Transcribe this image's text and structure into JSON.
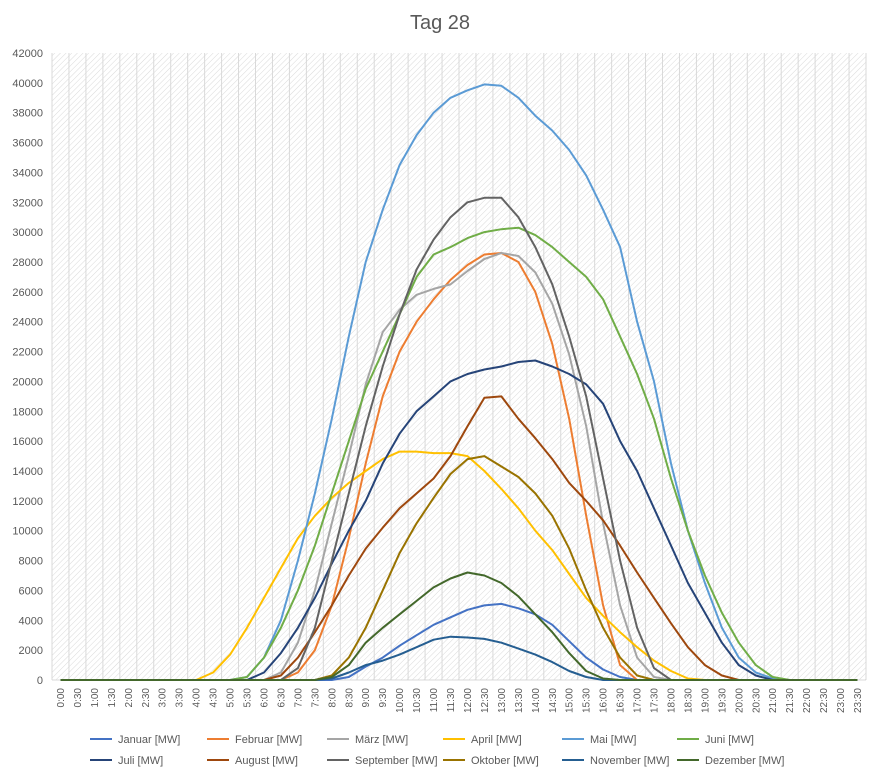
{
  "chart_data": {
    "type": "line",
    "title": "Tag 28",
    "ylim": [
      0,
      42000
    ],
    "y_ticks": [
      0,
      2000,
      4000,
      6000,
      8000,
      10000,
      12000,
      14000,
      16000,
      18000,
      20000,
      22000,
      24000,
      26000,
      28000,
      30000,
      32000,
      34000,
      36000,
      38000,
      40000,
      42000
    ],
    "x": [
      "0:00",
      "0:30",
      "1:00",
      "1:30",
      "2:00",
      "2:30",
      "3:00",
      "3:30",
      "4:00",
      "4:30",
      "5:00",
      "5:30",
      "6:00",
      "6:30",
      "7:00",
      "7:30",
      "8:00",
      "8:30",
      "9:00",
      "9:30",
      "10:00",
      "10:30",
      "11:00",
      "11:30",
      "12:00",
      "12:30",
      "13:00",
      "13:30",
      "14:00",
      "14:30",
      "15:00",
      "15:30",
      "16:00",
      "16:30",
      "17:00",
      "17:30",
      "18:00",
      "18:30",
      "19:00",
      "19:30",
      "20:00",
      "20:30",
      "21:00",
      "21:30",
      "22:00",
      "22:30",
      "23:00",
      "23:30"
    ],
    "grid": "vertical-hatch",
    "legend_position": "bottom",
    "series": [
      {
        "name": "Januar [MW]",
        "color": "#4472c4",
        "values": [
          0,
          0,
          0,
          0,
          0,
          0,
          0,
          0,
          0,
          0,
          0,
          0,
          0,
          0,
          0,
          0,
          0,
          200,
          900,
          1500,
          2300,
          3000,
          3700,
          4200,
          4700,
          5000,
          5100,
          4800,
          4400,
          3700,
          2600,
          1500,
          700,
          200,
          0,
          0,
          0,
          0,
          0,
          0,
          0,
          0,
          0,
          0,
          0,
          0,
          0,
          0
        ]
      },
      {
        "name": "Februar [MW]",
        "color": "#ed7d31",
        "values": [
          0,
          0,
          0,
          0,
          0,
          0,
          0,
          0,
          0,
          0,
          0,
          0,
          0,
          0,
          500,
          2000,
          5000,
          9500,
          14500,
          19000,
          22000,
          24000,
          25500,
          26800,
          27800,
          28500,
          28600,
          28000,
          26000,
          22500,
          17500,
          11000,
          5000,
          1000,
          0,
          0,
          0,
          0,
          0,
          0,
          0,
          0,
          0,
          0,
          0,
          0,
          0,
          0
        ]
      },
      {
        "name": "März [MW]",
        "color": "#a5a5a5",
        "values": [
          0,
          0,
          0,
          0,
          0,
          0,
          0,
          0,
          0,
          0,
          0,
          0,
          0,
          500,
          2500,
          6000,
          10500,
          15000,
          19800,
          23300,
          24800,
          25800,
          26200,
          26500,
          27400,
          28200,
          28600,
          28400,
          27300,
          25200,
          21800,
          17000,
          10500,
          5000,
          1500,
          200,
          0,
          0,
          0,
          0,
          0,
          0,
          0,
          0,
          0,
          0,
          0,
          0
        ]
      },
      {
        "name": "April [MW]",
        "color": "#ffc000",
        "values": [
          0,
          0,
          0,
          0,
          0,
          0,
          0,
          0,
          0,
          500,
          1700,
          3500,
          5500,
          7500,
          9500,
          11000,
          12200,
          13200,
          14000,
          14800,
          15300,
          15300,
          15200,
          15200,
          15000,
          14000,
          12800,
          11500,
          10000,
          8700,
          7100,
          5500,
          4300,
          3200,
          2200,
          1300,
          600,
          100,
          0,
          0,
          0,
          0,
          0,
          0,
          0,
          0,
          0,
          0
        ]
      },
      {
        "name": "Mai [MW]",
        "color": "#5b9bd5",
        "values": [
          0,
          0,
          0,
          0,
          0,
          0,
          0,
          0,
          0,
          0,
          0,
          200,
          1500,
          4000,
          8000,
          12500,
          17500,
          23000,
          28000,
          31500,
          34500,
          36500,
          38000,
          39000,
          39500,
          39900,
          39800,
          39000,
          37800,
          36800,
          35500,
          33800,
          31500,
          29000,
          24000,
          20000,
          14500,
          10000,
          6500,
          3500,
          1500,
          500,
          100,
          0,
          0,
          0,
          0,
          0
        ]
      },
      {
        "name": "Juni [MW]",
        "color": "#70ad47",
        "values": [
          0,
          0,
          0,
          0,
          0,
          0,
          0,
          0,
          0,
          0,
          0,
          200,
          1500,
          3500,
          6000,
          9000,
          12500,
          16000,
          19500,
          22000,
          24500,
          27000,
          28500,
          29000,
          29600,
          30000,
          30200,
          30300,
          29800,
          29000,
          28000,
          27000,
          25500,
          23000,
          20500,
          17500,
          13500,
          10000,
          7000,
          4500,
          2500,
          1000,
          200,
          0,
          0,
          0,
          0,
          0
        ]
      },
      {
        "name": "Juli [MW]",
        "color": "#264478",
        "values": [
          0,
          0,
          0,
          0,
          0,
          0,
          0,
          0,
          0,
          0,
          0,
          0,
          500,
          1800,
          3500,
          5500,
          7800,
          10000,
          12000,
          14500,
          16500,
          18000,
          19000,
          20000,
          20500,
          20800,
          21000,
          21300,
          21400,
          21000,
          20500,
          19800,
          18500,
          16000,
          14000,
          11500,
          9000,
          6500,
          4500,
          2500,
          1000,
          300,
          0,
          0,
          0,
          0,
          0,
          0
        ]
      },
      {
        "name": "August [MW]",
        "color": "#9e480e",
        "values": [
          0,
          0,
          0,
          0,
          0,
          0,
          0,
          0,
          0,
          0,
          0,
          0,
          0,
          300,
          1500,
          3200,
          5000,
          7000,
          8800,
          10200,
          11500,
          12500,
          13500,
          15000,
          17000,
          18900,
          19000,
          17500,
          16200,
          14800,
          13200,
          12000,
          10700,
          9000,
          7200,
          5500,
          3800,
          2200,
          1000,
          300,
          0,
          0,
          0,
          0,
          0,
          0,
          0,
          0
        ]
      },
      {
        "name": "September [MW]",
        "color": "#636363",
        "values": [
          0,
          0,
          0,
          0,
          0,
          0,
          0,
          0,
          0,
          0,
          0,
          0,
          0,
          0,
          800,
          3500,
          8000,
          12500,
          17000,
          21000,
          24500,
          27500,
          29500,
          31000,
          32000,
          32300,
          32300,
          31000,
          29000,
          26500,
          23000,
          19000,
          13500,
          8000,
          3500,
          800,
          0,
          0,
          0,
          0,
          0,
          0,
          0,
          0,
          0,
          0,
          0,
          0
        ]
      },
      {
        "name": "Oktober [MW]",
        "color": "#997300",
        "values": [
          0,
          0,
          0,
          0,
          0,
          0,
          0,
          0,
          0,
          0,
          0,
          0,
          0,
          0,
          0,
          0,
          300,
          1500,
          3500,
          6000,
          8500,
          10500,
          12200,
          13800,
          14800,
          15000,
          14300,
          13600,
          12500,
          11000,
          8800,
          6000,
          3500,
          1500,
          300,
          0,
          0,
          0,
          0,
          0,
          0,
          0,
          0,
          0,
          0,
          0,
          0,
          0
        ]
      },
      {
        "name": "November [MW]",
        "color": "#255e91",
        "values": [
          0,
          0,
          0,
          0,
          0,
          0,
          0,
          0,
          0,
          0,
          0,
          0,
          0,
          0,
          0,
          0,
          100,
          500,
          1000,
          1300,
          1700,
          2200,
          2700,
          2900,
          2850,
          2750,
          2500,
          2100,
          1700,
          1200,
          600,
          200,
          0,
          0,
          0,
          0,
          0,
          0,
          0,
          0,
          0,
          0,
          0,
          0,
          0,
          0,
          0,
          0
        ]
      },
      {
        "name": "Dezember [MW]",
        "color": "#43682b",
        "values": [
          0,
          0,
          0,
          0,
          0,
          0,
          0,
          0,
          0,
          0,
          0,
          0,
          0,
          0,
          0,
          0,
          200,
          1000,
          2500,
          3500,
          4400,
          5300,
          6200,
          6800,
          7200,
          7000,
          6500,
          5600,
          4400,
          3200,
          1800,
          600,
          100,
          0,
          0,
          0,
          0,
          0,
          0,
          0,
          0,
          0,
          0,
          0,
          0,
          0,
          0,
          0
        ]
      }
    ]
  }
}
